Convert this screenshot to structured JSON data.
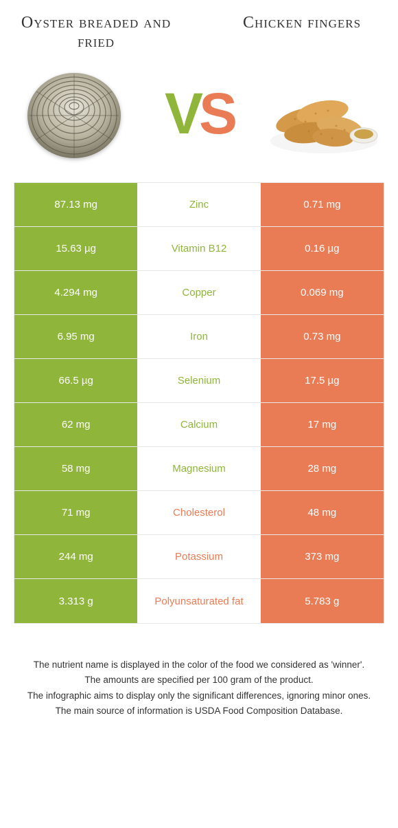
{
  "colors": {
    "left": "#8fb53a",
    "right": "#e97c54",
    "vs_v": "#8fb53a",
    "vs_s": "#e97c54"
  },
  "foods": {
    "left_title": "Oyster breaded and fried",
    "right_title": "Chicken fingers"
  },
  "vs": {
    "v": "V",
    "s": "S"
  },
  "rows": [
    {
      "left": "87.13 mg",
      "label": "Zinc",
      "right": "0.71 mg",
      "winner": "left"
    },
    {
      "left": "15.63 µg",
      "label": "Vitamin B12",
      "right": "0.16 µg",
      "winner": "left"
    },
    {
      "left": "4.294 mg",
      "label": "Copper",
      "right": "0.069 mg",
      "winner": "left"
    },
    {
      "left": "6.95 mg",
      "label": "Iron",
      "right": "0.73 mg",
      "winner": "left"
    },
    {
      "left": "66.5 µg",
      "label": "Selenium",
      "right": "17.5 µg",
      "winner": "left"
    },
    {
      "left": "62 mg",
      "label": "Calcium",
      "right": "17 mg",
      "winner": "left"
    },
    {
      "left": "58 mg",
      "label": "Magnesium",
      "right": "28 mg",
      "winner": "left"
    },
    {
      "left": "71 mg",
      "label": "Cholesterol",
      "right": "48 mg",
      "winner": "right"
    },
    {
      "left": "244 mg",
      "label": "Potassium",
      "right": "373 mg",
      "winner": "right"
    },
    {
      "left": "3.313 g",
      "label": "Polyunsaturated fat",
      "right": "5.783 g",
      "winner": "right"
    }
  ],
  "footer": {
    "l1": "The nutrient name is displayed in the color of the food we considered as 'winner'.",
    "l2": "The amounts are specified per 100 gram of the product.",
    "l3": "The infographic aims to display only the significant differences, ignoring minor ones.",
    "l4": "The main source of information is USDA Food Composition Database."
  }
}
